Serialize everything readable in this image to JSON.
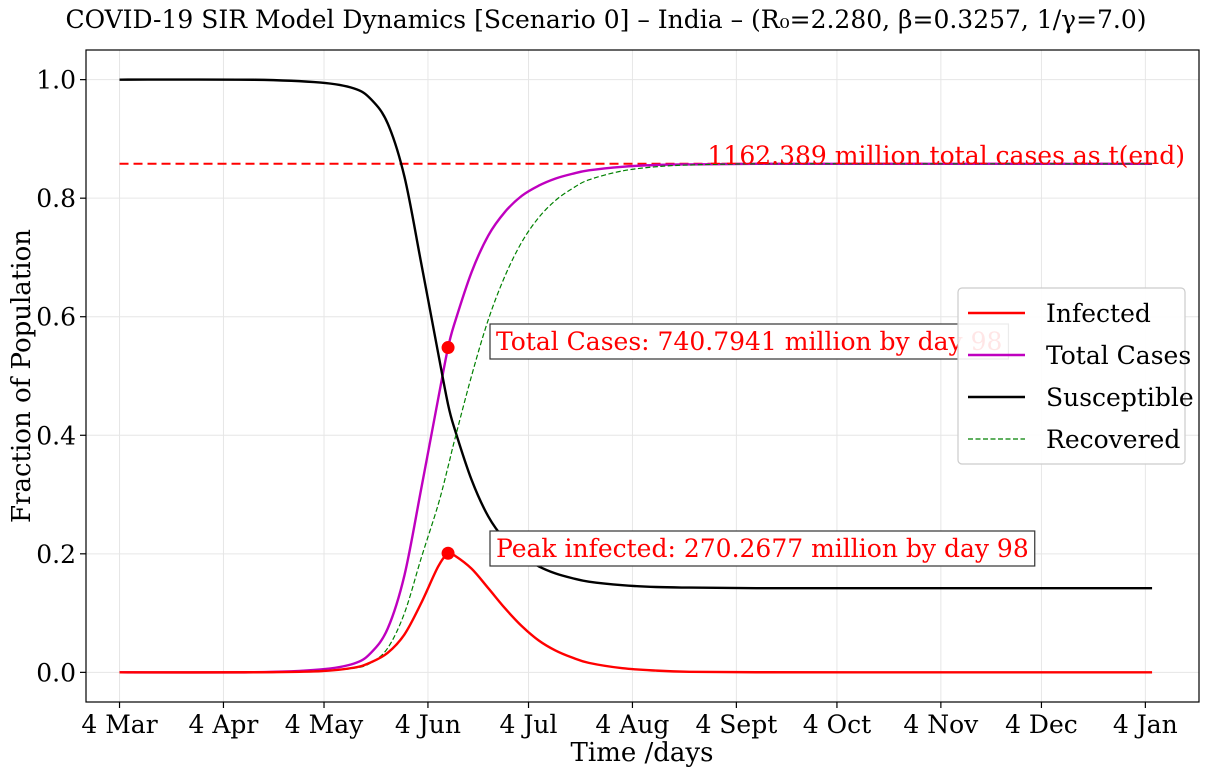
{
  "title": "COVID-19 SIR Model Dynamics [Scenario 0] – India – (R₀=2.280, β=0.3257, 1/γ=7.0)",
  "chart_data": {
    "type": "line",
    "xlabel": "Time /days",
    "ylabel": "Fraction of Population",
    "xlim": [
      -10,
      322
    ],
    "ylim": [
      -0.05,
      1.05
    ],
    "grid": true,
    "legend_position": "center-right",
    "x_ticks": [
      {
        "day": 0,
        "label": "4 Mar"
      },
      {
        "day": 31,
        "label": "4 Apr"
      },
      {
        "day": 61,
        "label": "4 May"
      },
      {
        "day": 92,
        "label": "4 Jun"
      },
      {
        "day": 122,
        "label": "4 Jul"
      },
      {
        "day": 153,
        "label": "4 Aug"
      },
      {
        "day": 184,
        "label": "4 Sept"
      },
      {
        "day": 214,
        "label": "4 Oct"
      },
      {
        "day": 245,
        "label": "4 Nov"
      },
      {
        "day": 275,
        "label": "4 Dec"
      },
      {
        "day": 306,
        "label": "4 Jan"
      }
    ],
    "y_ticks": [
      {
        "value": 0.0,
        "label": "0.0"
      },
      {
        "value": 0.2,
        "label": "0.2"
      },
      {
        "value": 0.4,
        "label": "0.4"
      },
      {
        "value": 0.6,
        "label": "0.6"
      },
      {
        "value": 0.8,
        "label": "0.8"
      },
      {
        "value": 1.0,
        "label": "1.0"
      }
    ],
    "series": [
      {
        "name": "Infected",
        "color": "#ff0000",
        "style": "solid",
        "x": [
          0,
          40,
          60,
          70,
          75,
          80,
          85,
          90,
          95,
          98,
          100,
          105,
          110,
          115,
          120,
          125,
          130,
          135,
          140,
          150,
          160,
          170,
          190,
          220,
          260,
          308
        ],
        "y": [
          0.0,
          0.0002,
          0.002,
          0.008,
          0.017,
          0.033,
          0.064,
          0.117,
          0.178,
          0.201,
          0.197,
          0.175,
          0.142,
          0.108,
          0.078,
          0.054,
          0.037,
          0.025,
          0.016,
          0.007,
          0.003,
          0.001,
          0.0002,
          0.0,
          0.0,
          0.0
        ]
      },
      {
        "name": "Total Cases",
        "color": "#bf00bf",
        "style": "solid",
        "x": [
          0,
          40,
          60,
          70,
          75,
          80,
          85,
          90,
          95,
          98,
          100,
          105,
          110,
          115,
          120,
          125,
          130,
          135,
          140,
          150,
          160,
          170,
          190,
          220,
          260,
          308
        ],
        "y": [
          0.0,
          0.0002,
          0.005,
          0.015,
          0.033,
          0.074,
          0.164,
          0.31,
          0.46,
          0.548,
          0.59,
          0.675,
          0.737,
          0.777,
          0.804,
          0.821,
          0.833,
          0.841,
          0.847,
          0.853,
          0.856,
          0.857,
          0.858,
          0.858,
          0.858,
          0.858
        ]
      },
      {
        "name": "Susceptible",
        "color": "#000000",
        "style": "solid",
        "x": [
          0,
          40,
          60,
          70,
          75,
          80,
          85,
          90,
          95,
          98,
          100,
          105,
          110,
          115,
          120,
          125,
          130,
          135,
          140,
          150,
          160,
          170,
          190,
          220,
          260,
          308
        ],
        "y": [
          1.0,
          0.9998,
          0.995,
          0.985,
          0.967,
          0.926,
          0.836,
          0.69,
          0.54,
          0.452,
          0.41,
          0.325,
          0.263,
          0.223,
          0.196,
          0.179,
          0.167,
          0.159,
          0.153,
          0.147,
          0.144,
          0.143,
          0.142,
          0.142,
          0.142,
          0.142
        ]
      },
      {
        "name": "Recovered",
        "color": "#008000",
        "style": "dashed",
        "x": [
          0,
          40,
          60,
          70,
          75,
          80,
          85,
          90,
          95,
          98,
          100,
          105,
          110,
          115,
          120,
          125,
          130,
          135,
          140,
          150,
          160,
          170,
          190,
          220,
          260,
          308
        ],
        "y": [
          0.0,
          0.0,
          0.003,
          0.007,
          0.016,
          0.041,
          0.1,
          0.193,
          0.282,
          0.347,
          0.393,
          0.5,
          0.595,
          0.669,
          0.726,
          0.767,
          0.796,
          0.816,
          0.831,
          0.846,
          0.853,
          0.856,
          0.858,
          0.858,
          0.858,
          0.858
        ]
      }
    ],
    "hline": {
      "y": 0.858,
      "color": "#ff0000",
      "style": "dashed",
      "x_from": 0,
      "x_to": 308
    },
    "markers": [
      {
        "x": 98,
        "y": 0.548,
        "color": "#ff0000"
      },
      {
        "x": 98,
        "y": 0.201,
        "color": "#ff0000"
      }
    ],
    "annotations": {
      "total_cases": {
        "text": "Total Cases: 740.7941 million by day 98",
        "x": 109,
        "y": 0.55,
        "boxed": true,
        "color": "#ff0000"
      },
      "peak_infected": {
        "text": "Peak infected: 270.2677 million by day 98",
        "x": 109,
        "y": 0.2,
        "boxed": true,
        "color": "#ff0000"
      },
      "end_total": {
        "text": "1162.389 million total cases as t(end)",
        "x": 318,
        "y": 0.858,
        "boxed": false,
        "color": "#ff0000"
      }
    }
  }
}
